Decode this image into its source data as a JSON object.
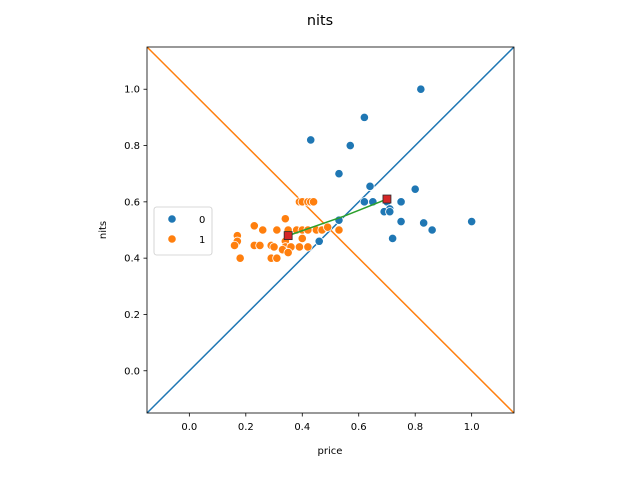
{
  "chart_data": {
    "type": "scatter",
    "title": "nits",
    "xlabel": "price",
    "ylabel": "nits",
    "xlim": [
      -0.15,
      1.15
    ],
    "ylim": [
      -0.15,
      1.15
    ],
    "xticks": [
      "0.0",
      "0.2",
      "0.4",
      "0.6",
      "0.8",
      "1.0"
    ],
    "yticks": [
      "0.0",
      "0.2",
      "0.4",
      "0.6",
      "0.8",
      "1.0"
    ],
    "grid": false,
    "legend": {
      "placement": "center-left",
      "entries": [
        "0",
        "1"
      ]
    },
    "colors": {
      "series_0": "#1f77b4",
      "series_1": "#ff7f0e",
      "centroid": "#d62728",
      "centroid_edge": "#2a2a2a",
      "connector": "#2ca02c",
      "marker_edge": "#ffffff"
    },
    "series": [
      {
        "name": "0",
        "points": [
          [
            0.82,
            1.0
          ],
          [
            0.62,
            0.9
          ],
          [
            0.43,
            0.82
          ],
          [
            0.57,
            0.8
          ],
          [
            0.53,
            0.7
          ],
          [
            0.64,
            0.655
          ],
          [
            0.8,
            0.645
          ],
          [
            0.62,
            0.6
          ],
          [
            0.65,
            0.6
          ],
          [
            0.7,
            0.6
          ],
          [
            0.75,
            0.6
          ],
          [
            0.71,
            0.575
          ],
          [
            0.69,
            0.565
          ],
          [
            0.71,
            0.565
          ],
          [
            0.75,
            0.53
          ],
          [
            0.83,
            0.525
          ],
          [
            0.86,
            0.5
          ],
          [
            0.72,
            0.47
          ],
          [
            1.0,
            0.53
          ],
          [
            0.53,
            0.535
          ],
          [
            0.47,
            0.5
          ],
          [
            0.46,
            0.46
          ]
        ]
      },
      {
        "name": "1",
        "points": [
          [
            0.39,
            0.6
          ],
          [
            0.4,
            0.6
          ],
          [
            0.42,
            0.6
          ],
          [
            0.43,
            0.6
          ],
          [
            0.44,
            0.6
          ],
          [
            0.34,
            0.54
          ],
          [
            0.23,
            0.515
          ],
          [
            0.26,
            0.5
          ],
          [
            0.31,
            0.5
          ],
          [
            0.35,
            0.5
          ],
          [
            0.38,
            0.5
          ],
          [
            0.4,
            0.5
          ],
          [
            0.42,
            0.5
          ],
          [
            0.45,
            0.5
          ],
          [
            0.47,
            0.5
          ],
          [
            0.49,
            0.51
          ],
          [
            0.53,
            0.5
          ],
          [
            0.17,
            0.48
          ],
          [
            0.17,
            0.46
          ],
          [
            0.4,
            0.47
          ],
          [
            0.34,
            0.46
          ],
          [
            0.16,
            0.445
          ],
          [
            0.23,
            0.445
          ],
          [
            0.25,
            0.445
          ],
          [
            0.29,
            0.445
          ],
          [
            0.3,
            0.44
          ],
          [
            0.34,
            0.44
          ],
          [
            0.36,
            0.44
          ],
          [
            0.39,
            0.44
          ],
          [
            0.42,
            0.44
          ],
          [
            0.33,
            0.43
          ],
          [
            0.35,
            0.42
          ],
          [
            0.29,
            0.4
          ],
          [
            0.31,
            0.4
          ],
          [
            0.18,
            0.4
          ]
        ]
      }
    ],
    "centroids": [
      {
        "series": "0",
        "x": 0.7,
        "y": 0.61
      },
      {
        "series": "1",
        "x": 0.35,
        "y": 0.48
      }
    ],
    "reference_lines": [
      {
        "from": [
          -0.15,
          -0.15
        ],
        "to": [
          1.15,
          1.15
        ],
        "color": "#1f77b4"
      },
      {
        "from": [
          -0.15,
          1.15
        ],
        "to": [
          1.15,
          -0.15
        ],
        "color": "#ff7f0e"
      }
    ],
    "connector_segments": [
      {
        "from": [
          0.35,
          0.48
        ],
        "to": [
          0.55,
          0.55
        ]
      },
      {
        "from": [
          0.55,
          0.55
        ],
        "to": [
          0.7,
          0.61
        ]
      }
    ]
  }
}
